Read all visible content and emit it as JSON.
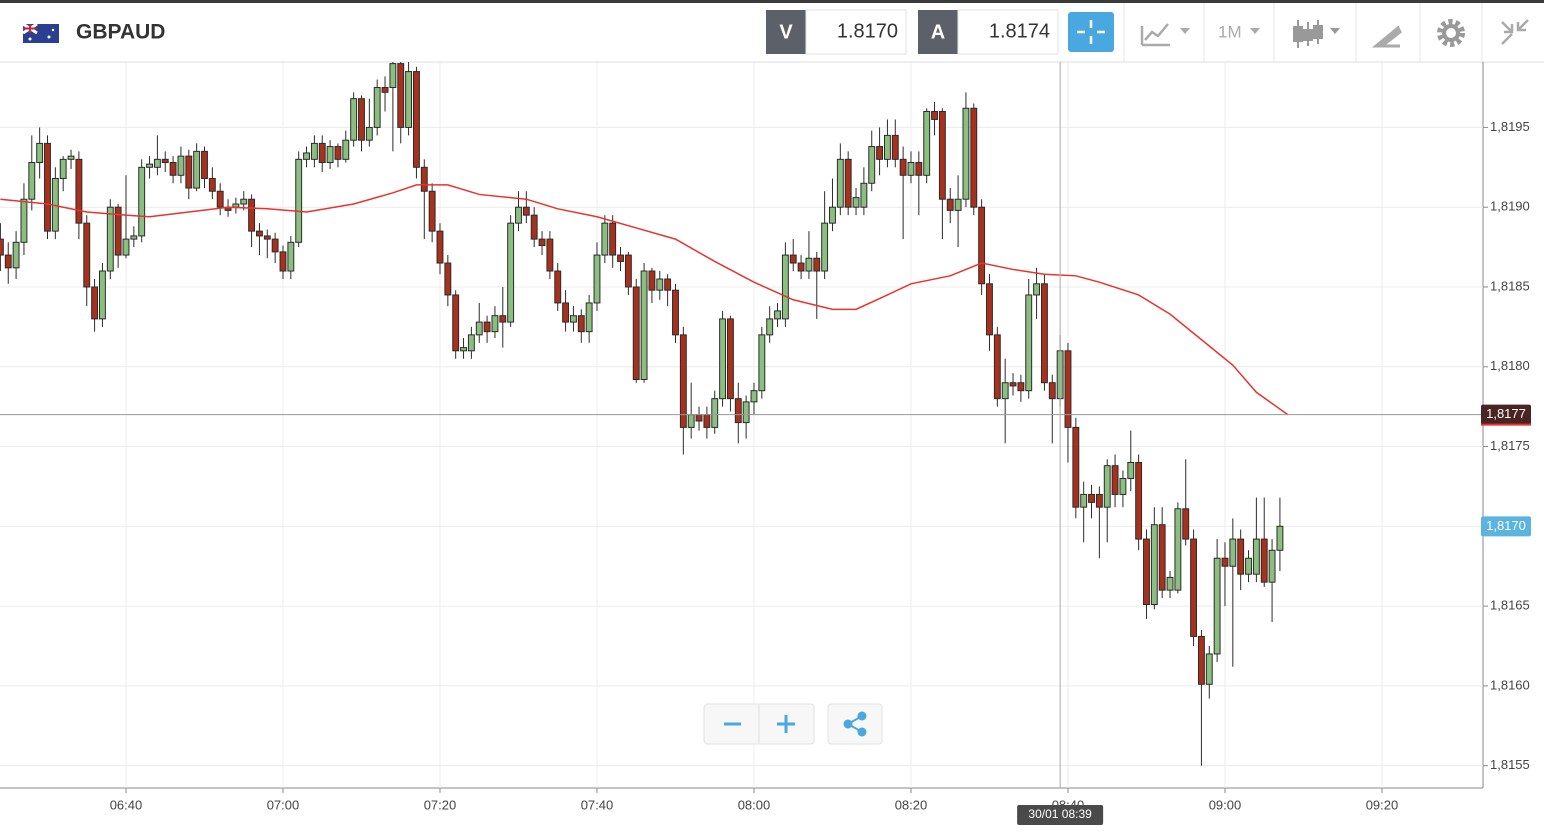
{
  "toolbar": {
    "symbol": "GBPAUD",
    "bid_label": "V",
    "bid": "1.8170",
    "ask_label": "A",
    "ask": "1.8174",
    "timeframe": "1M"
  },
  "chart_data": {
    "type": "candlestick",
    "x": [
      384,
      385,
      386,
      387,
      388,
      389,
      390,
      391,
      392,
      393,
      394,
      395,
      396,
      397,
      398,
      399,
      400,
      401,
      402,
      403,
      404,
      405,
      406,
      407,
      408,
      409,
      410,
      411,
      412,
      413,
      414,
      415,
      416,
      417,
      418,
      419,
      420,
      421,
      422,
      423,
      424,
      425,
      426,
      427,
      428,
      429,
      430,
      431,
      432,
      433,
      434,
      435,
      436,
      437,
      438,
      439,
      440,
      441,
      442,
      443,
      444,
      445,
      446,
      447,
      448,
      449,
      450,
      451,
      452,
      453,
      454,
      455,
      456,
      457,
      458,
      459,
      460,
      461,
      462,
      463,
      464,
      465,
      466,
      467,
      468,
      469,
      470,
      471,
      472,
      473,
      474,
      475,
      476,
      477,
      478,
      479,
      480,
      481,
      482,
      483,
      484,
      485,
      486,
      487,
      488,
      489,
      490,
      491,
      492,
      493,
      494,
      495,
      496,
      497,
      498,
      499,
      500,
      501,
      502,
      503,
      504,
      505,
      506,
      507,
      508,
      509,
      510,
      511,
      512,
      513,
      514,
      515,
      516,
      517,
      518,
      519,
      520,
      521,
      522,
      523,
      524,
      525,
      526,
      527,
      528,
      529,
      530,
      531,
      532,
      533,
      534,
      535,
      536,
      537,
      538,
      539,
      540,
      541,
      542,
      543,
      544,
      545,
      546,
      547
    ],
    "open": [
      1.8188,
      1.8187,
      1.81862,
      1.81878,
      1.81905,
      1.81928,
      1.8194,
      1.81885,
      1.81918,
      1.8193,
      1.8193,
      1.8189,
      1.8185,
      1.8183,
      1.8186,
      1.819,
      1.8187,
      1.8188,
      1.81882,
      1.81925,
      1.81925,
      1.8193,
      1.81928,
      1.8192,
      1.81932,
      1.81912,
      1.81935,
      1.81918,
      1.8191,
      1.819,
      1.819,
      1.81902,
      1.81905,
      1.81885,
      1.81882,
      1.8188,
      1.81872,
      1.8186,
      1.81878,
      1.8193,
      1.8193,
      1.8194,
      1.81928,
      1.81938,
      1.8193,
      1.81942,
      1.81968,
      1.81942,
      1.8195,
      1.81975,
      1.81975,
      1.8199,
      1.8195,
      1.81985,
      1.81925,
      1.8191,
      1.81885,
      1.81865,
      1.81845,
      1.8181,
      1.8181,
      1.8182,
      1.81828,
      1.81822,
      1.81832,
      1.81828,
      1.8189,
      1.819,
      1.81895,
      1.8188,
      1.8188,
      1.8186,
      1.8184,
      1.81828,
      1.81832,
      1.81822,
      1.8184,
      1.8187,
      1.8189,
      1.8187,
      1.8187,
      1.8185,
      1.81792,
      1.8186,
      1.81848,
      1.81855,
      1.81848,
      1.8182,
      1.81762,
      1.8177,
      1.8177,
      1.81762,
      1.8178,
      1.8183,
      1.8178,
      1.81765,
      1.81778,
      1.81785,
      1.8182,
      1.8183,
      1.8183,
      1.8187,
      1.81865,
      1.8186,
      1.81868,
      1.8186,
      1.8189,
      1.819,
      1.8193,
      1.819,
      1.819,
      1.81915,
      1.81938,
      1.8193,
      1.81945,
      1.8193,
      1.8192,
      1.81928,
      1.8192,
      1.8196,
      1.8196,
      1.81905,
      1.81898,
      1.81905,
      1.81962,
      1.819,
      1.81852,
      1.8182,
      1.8178,
      1.8179,
      1.8179,
      1.81785,
      1.81845,
      1.81852,
      1.8179,
      1.8178,
      1.8181,
      1.81762,
      1.81712,
      1.8172,
      1.8172,
      1.81712,
      1.81738,
      1.8172,
      1.8173,
      1.8174,
      1.81692,
      1.81651,
      1.81701,
      1.8166,
      1.8166,
      1.81711,
      1.81692,
      1.81631,
      1.81601,
      1.8162,
      1.8168,
      1.81675,
      1.81692,
      1.8167,
      1.8167,
      1.81692,
      1.81665,
      1.81685
    ],
    "high": [
      1.8189,
      1.81878,
      1.81885,
      1.81915,
      1.81945,
      1.8195,
      1.81945,
      1.81925,
      1.81932,
      1.81936,
      1.81935,
      1.81895,
      1.81855,
      1.81865,
      1.81905,
      1.81902,
      1.8192,
      1.81888,
      1.8193,
      1.81932,
      1.81945,
      1.81935,
      1.81932,
      1.81938,
      1.81936,
      1.8194,
      1.81938,
      1.81925,
      1.81915,
      1.81905,
      1.81906,
      1.8191,
      1.81908,
      1.8189,
      1.81886,
      1.81884,
      1.81876,
      1.81882,
      1.81935,
      1.81938,
      1.81945,
      1.81945,
      1.81942,
      1.8194,
      1.81948,
      1.81972,
      1.8197,
      1.81968,
      1.8198,
      1.81982,
      1.81995,
      1.81992,
      1.81992,
      1.81988,
      1.8193,
      1.81915,
      1.8189,
      1.8187,
      1.81848,
      1.81818,
      1.81825,
      1.8184,
      1.81832,
      1.81838,
      1.8185,
      1.81895,
      1.8191,
      1.8191,
      1.819,
      1.81885,
      1.81885,
      1.81865,
      1.81848,
      1.81838,
      1.81836,
      1.81845,
      1.81878,
      1.81895,
      1.81895,
      1.81875,
      1.81872,
      1.81855,
      1.81865,
      1.81862,
      1.8186,
      1.81858,
      1.81852,
      1.81825,
      1.8179,
      1.81775,
      1.81775,
      1.81785,
      1.81835,
      1.81832,
      1.8179,
      1.81782,
      1.8179,
      1.81825,
      1.81838,
      1.8184,
      1.81878,
      1.8188,
      1.8187,
      1.81885,
      1.81872,
      1.8191,
      1.81918,
      1.8194,
      1.81935,
      1.81912,
      1.81925,
      1.81948,
      1.8195,
      1.81955,
      1.81955,
      1.81938,
      1.81935,
      1.81935,
      1.81962,
      1.81966,
      1.81962,
      1.81912,
      1.8192,
      1.81972,
      1.81965,
      1.81905,
      1.81858,
      1.81825,
      1.81805,
      1.81796,
      1.81795,
      1.81855,
      1.81862,
      1.81858,
      1.81795,
      1.8182,
      1.81815,
      1.81768,
      1.81728,
      1.81726,
      1.81725,
      1.81742,
      1.81745,
      1.81735,
      1.8176,
      1.81745,
      1.81698,
      1.81712,
      1.81712,
      1.81672,
      1.81715,
      1.81742,
      1.81698,
      1.81635,
      1.81625,
      1.81692,
      1.8169,
      1.81705,
      1.81698,
      1.81685,
      1.81718,
      1.81718,
      1.81692,
      1.81718
    ],
    "low": [
      1.8186,
      1.81852,
      1.81855,
      1.8187,
      1.81898,
      1.81918,
      1.8188,
      1.8188,
      1.8191,
      1.81924,
      1.8188,
      1.81838,
      1.81822,
      1.81825,
      1.81855,
      1.81862,
      1.81868,
      1.81875,
      1.81878,
      1.81918,
      1.8192,
      1.81922,
      1.81915,
      1.81915,
      1.81905,
      1.8191,
      1.81912,
      1.81905,
      1.81895,
      1.81894,
      1.81896,
      1.81898,
      1.81875,
      1.8187,
      1.81868,
      1.81865,
      1.81855,
      1.81855,
      1.81875,
      1.81925,
      1.81925,
      1.81922,
      1.81924,
      1.81925,
      1.81928,
      1.81938,
      1.81935,
      1.81938,
      1.81945,
      1.8196,
      1.81935,
      1.8194,
      1.81945,
      1.81918,
      1.8188,
      1.81878,
      1.81858,
      1.81838,
      1.81805,
      1.81805,
      1.81805,
      1.81815,
      1.81815,
      1.81818,
      1.81812,
      1.81825,
      1.81885,
      1.8189,
      1.81875,
      1.8187,
      1.81855,
      1.81835,
      1.81822,
      1.81822,
      1.81815,
      1.81815,
      1.81835,
      1.81865,
      1.81862,
      1.8186,
      1.81845,
      1.8179,
      1.8179,
      1.8184,
      1.81842,
      1.81838,
      1.81815,
      1.81745,
      1.81755,
      1.8176,
      1.81755,
      1.81758,
      1.81775,
      1.81772,
      1.81752,
      1.81755,
      1.8177,
      1.8178,
      1.81815,
      1.81825,
      1.81825,
      1.8186,
      1.81855,
      1.81855,
      1.8183,
      1.81855,
      1.81885,
      1.81895,
      1.81895,
      1.81895,
      1.81895,
      1.8191,
      1.8192,
      1.81925,
      1.81925,
      1.8188,
      1.81915,
      1.81895,
      1.81915,
      1.81945,
      1.8188,
      1.8189,
      1.81875,
      1.819,
      1.81895,
      1.81845,
      1.8181,
      1.81775,
      1.81752,
      1.81782,
      1.81778,
      1.8178,
      1.8183,
      1.81785,
      1.81752,
      1.81775,
      1.8174,
      1.81705,
      1.8169,
      1.81705,
      1.8168,
      1.8169,
      1.81712,
      1.81712,
      1.81722,
      1.81685,
      1.81642,
      1.81648,
      1.81655,
      1.81655,
      1.81658,
      1.81688,
      1.81625,
      1.8155,
      1.81592,
      1.81615,
      1.8165,
      1.81612,
      1.8166,
      1.81665,
      1.81665,
      1.81662,
      1.8164,
      1.81672
    ],
    "close": [
      1.8187,
      1.81862,
      1.81878,
      1.81905,
      1.81928,
      1.8194,
      1.81885,
      1.81918,
      1.8193,
      1.81932,
      1.8189,
      1.8185,
      1.8183,
      1.8186,
      1.819,
      1.8187,
      1.8188,
      1.81882,
      1.81925,
      1.81927,
      1.8193,
      1.81928,
      1.8192,
      1.81932,
      1.81912,
      1.81935,
      1.81918,
      1.8191,
      1.819,
      1.81898,
      1.81902,
      1.81905,
      1.81885,
      1.81882,
      1.8188,
      1.81872,
      1.8186,
      1.81878,
      1.8193,
      1.81934,
      1.8194,
      1.81928,
      1.81938,
      1.8193,
      1.81942,
      1.81968,
      1.81942,
      1.8195,
      1.81975,
      1.81972,
      1.8199,
      1.8195,
      1.81985,
      1.81925,
      1.8191,
      1.81885,
      1.81865,
      1.81845,
      1.8181,
      1.81812,
      1.8182,
      1.81828,
      1.81822,
      1.81832,
      1.81828,
      1.8189,
      1.819,
      1.81895,
      1.8188,
      1.81876,
      1.8186,
      1.8184,
      1.81828,
      1.81832,
      1.81822,
      1.8184,
      1.8187,
      1.8189,
      1.8187,
      1.81866,
      1.8185,
      1.81792,
      1.8186,
      1.81848,
      1.81855,
      1.81848,
      1.8182,
      1.81762,
      1.8177,
      1.81766,
      1.81762,
      1.8178,
      1.8183,
      1.8178,
      1.81765,
      1.81778,
      1.81785,
      1.8182,
      1.8183,
      1.81835,
      1.8187,
      1.81865,
      1.8186,
      1.81868,
      1.8186,
      1.8189,
      1.819,
      1.8193,
      1.819,
      1.81906,
      1.81915,
      1.81938,
      1.8193,
      1.81945,
      1.8193,
      1.8192,
      1.81928,
      1.8192,
      1.8196,
      1.81955,
      1.81905,
      1.81898,
      1.81905,
      1.81962,
      1.819,
      1.81852,
      1.8182,
      1.8178,
      1.8179,
      1.81788,
      1.81785,
      1.81845,
      1.81852,
      1.8179,
      1.8178,
      1.8181,
      1.81762,
      1.81712,
      1.8172,
      1.81715,
      1.81712,
      1.81738,
      1.8172,
      1.8173,
      1.8174,
      1.81692,
      1.81651,
      1.81701,
      1.8166,
      1.81668,
      1.81711,
      1.81692,
      1.81631,
      1.81601,
      1.8162,
      1.8168,
      1.81675,
      1.81692,
      1.8167,
      1.8168,
      1.81692,
      1.81665,
      1.81685,
      1.817
    ],
    "up_color": "#8bbf7f",
    "down_color": "#a8311d",
    "ma": {
      "color": "#e8332e",
      "x": [
        384,
        390,
        395,
        400,
        403,
        408,
        413,
        418,
        423,
        429,
        434,
        437,
        441,
        445,
        451,
        455,
        460,
        465,
        470,
        475,
        480,
        485,
        490,
        493,
        497,
        500,
        505,
        509,
        513,
        517,
        521,
        524,
        529,
        533,
        537,
        541,
        544,
        548
      ],
      "values": [
        1.81905,
        1.81902,
        1.81897,
        1.81895,
        1.81894,
        1.81897,
        1.819,
        1.81899,
        1.81897,
        1.81902,
        1.81909,
        1.81914,
        1.81914,
        1.81908,
        1.81905,
        1.81899,
        1.81894,
        1.81887,
        1.8188,
        1.81866,
        1.81853,
        1.81842,
        1.81836,
        1.81836,
        1.81845,
        1.81852,
        1.81857,
        1.81865,
        1.81861,
        1.81858,
        1.81857,
        1.81853,
        1.81845,
        1.81833,
        1.81817,
        1.81801,
        1.81784,
        1.8177
      ]
    },
    "xlim": [
      383.95,
      572.87
    ],
    "xticks": [
      {
        "value": 400,
        "label": "06:40"
      },
      {
        "value": 420,
        "label": "07:00"
      },
      {
        "value": 440,
        "label": "07:20"
      },
      {
        "value": 460,
        "label": "07:40"
      },
      {
        "value": 480,
        "label": "08:00"
      },
      {
        "value": 500,
        "label": "08:20"
      },
      {
        "value": 520,
        "label": "08:40"
      },
      {
        "value": 540,
        "label": "09:00"
      },
      {
        "value": 560,
        "label": "09:20"
      }
    ],
    "ylim": [
      1.81536,
      1.81991
    ],
    "yticks": [
      {
        "value": 1.8155,
        "label": "1,8155"
      },
      {
        "value": 1.816,
        "label": "1,8160"
      },
      {
        "value": 1.8165,
        "label": "1,8165"
      },
      {
        "value": 1.817,
        "label": "1,8170"
      },
      {
        "value": 1.8175,
        "label": "1,8175"
      },
      {
        "value": 1.818,
        "label": "1,8180"
      },
      {
        "value": 1.8185,
        "label": "1,8185"
      },
      {
        "value": 1.819,
        "label": "1,8190"
      },
      {
        "value": 1.8195,
        "label": "1,8195"
      }
    ],
    "grid": true,
    "last_price": {
      "value": 1.817,
      "label": "1,8170"
    },
    "crosshair": {
      "price": {
        "value": 1.8177,
        "label": "1,8177"
      },
      "time": {
        "value": 519,
        "label": "30/01 08:39"
      }
    }
  }
}
